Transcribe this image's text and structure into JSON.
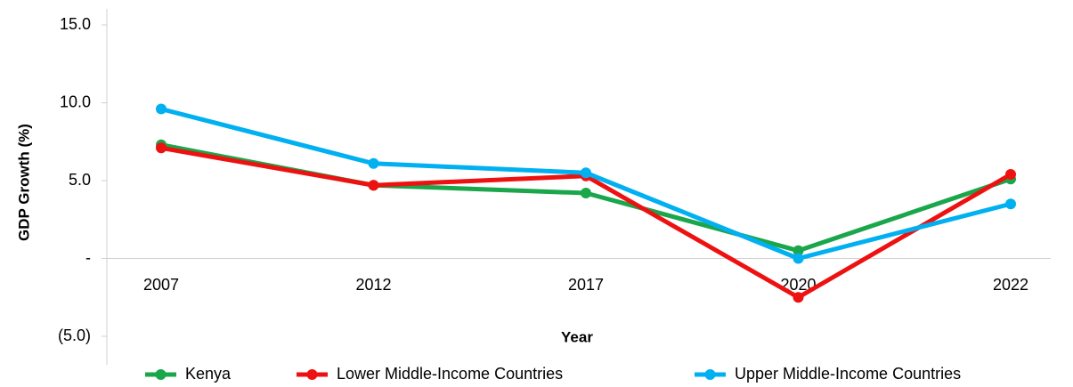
{
  "chart_data": {
    "type": "line",
    "x_label": "Year",
    "y_label": "GDP Growth (%)",
    "categories": [
      "2007",
      "2012",
      "2017",
      "2020",
      "2022"
    ],
    "series": [
      {
        "name": "Kenya",
        "color": "#1aa64a",
        "values": [
          7.3,
          4.7,
          4.2,
          0.5,
          5.1
        ]
      },
      {
        "name": "Lower Middle-Income Countries",
        "color": "#ee1111",
        "values": [
          7.1,
          4.7,
          5.3,
          -2.5,
          5.4
        ]
      },
      {
        "name": "Upper Middle-Income Countries",
        "color": "#00b0f0",
        "values": [
          9.6,
          6.1,
          5.5,
          0,
          3.5
        ]
      }
    ],
    "ylim": [
      -5,
      15
    ],
    "yticks": [
      {
        "value": -5,
        "label": "(5.0)"
      },
      {
        "value": 0,
        "label": "-"
      },
      {
        "value": 5,
        "label": "5.0"
      },
      {
        "value": 10,
        "label": "10.0"
      },
      {
        "value": 15,
        "label": "15.0"
      }
    ],
    "legend": "bottom"
  }
}
